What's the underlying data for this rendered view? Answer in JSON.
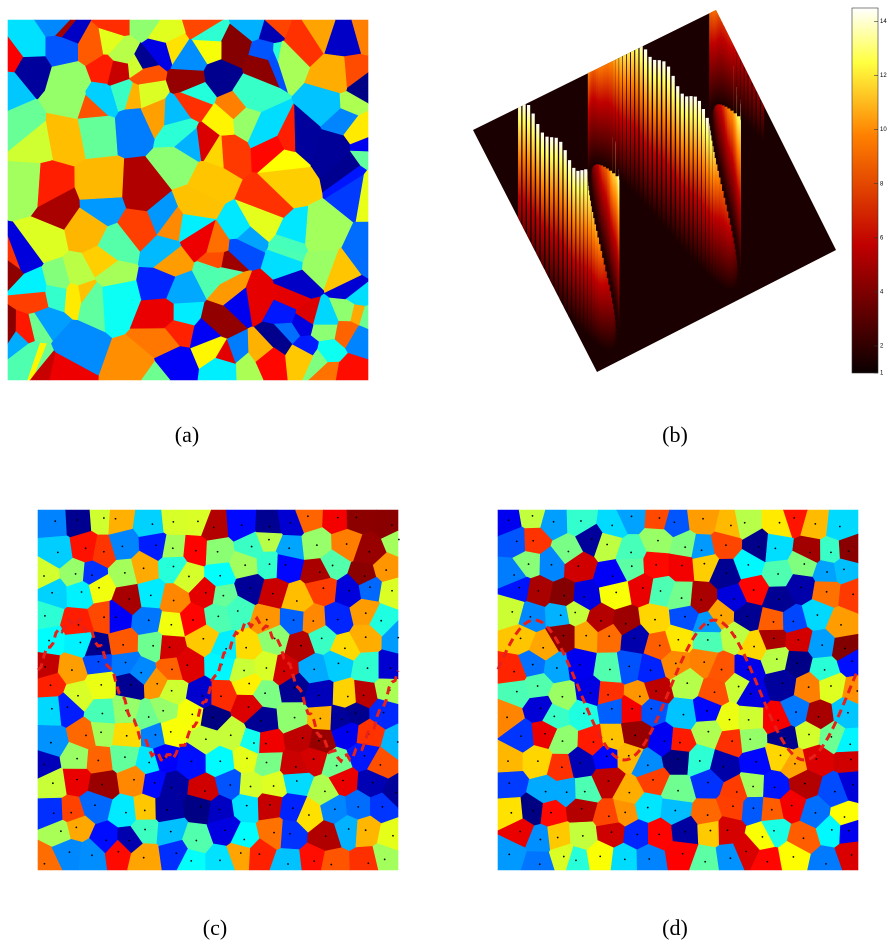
{
  "panels": [
    {
      "caption": "(a)"
    },
    {
      "caption": "(b)"
    },
    {
      "caption": "(c)"
    },
    {
      "caption": "(d)"
    }
  ],
  "colorbar": {
    "lim": [
      1,
      14.5
    ],
    "ticks": [
      1,
      2,
      4,
      6,
      8,
      10,
      12,
      14
    ]
  }
}
